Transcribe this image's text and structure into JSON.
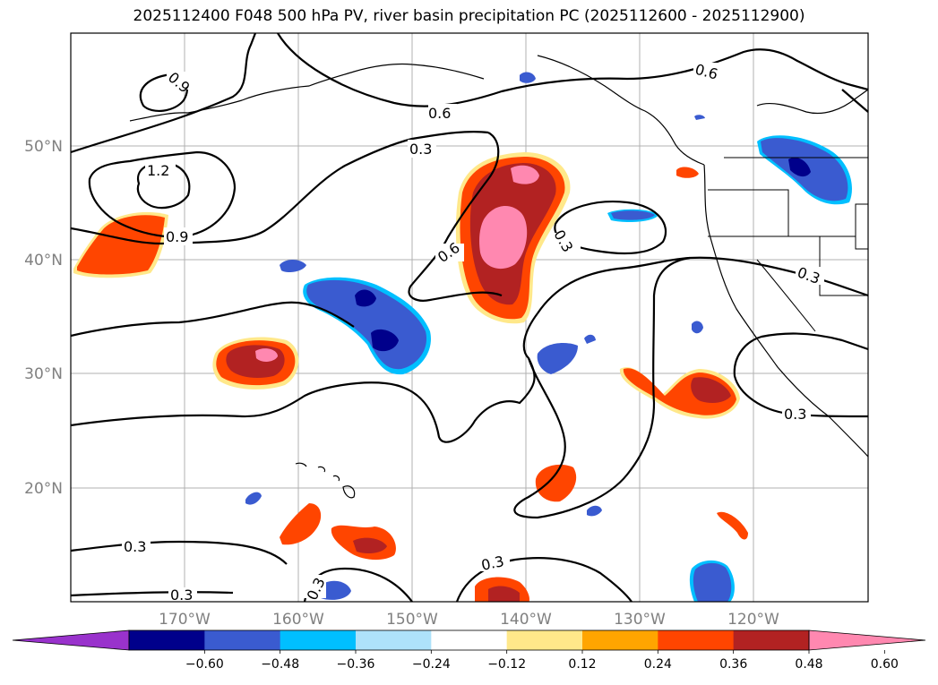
{
  "title": "2025112400 F048 500 hPa PV, river basin precipitation PC (2025112600 - 2025112900)",
  "axes": {
    "lon_ticks": [
      "170°W",
      "160°W",
      "150°W",
      "140°W",
      "130°W",
      "120°W"
    ],
    "lat_ticks": [
      "50°N",
      "40°N",
      "30°N",
      "20°N"
    ]
  },
  "contour_labels": [
    "0.9",
    "1.2",
    "0.9",
    "0.6",
    "0.3",
    "0.6",
    "0.6",
    "0.3",
    "0.3",
    "0.3",
    "0.3",
    "0.3",
    "0.3",
    "0.3"
  ],
  "colorbar": {
    "colors": [
      "#9932cc",
      "#00008b",
      "#3a5bd0",
      "#00bfff",
      "#aee2fa",
      "#ffffff",
      "#ffe88a",
      "#ffa500",
      "#ff4500",
      "#b22222",
      "#ff88b0"
    ],
    "labels": [
      "−0.60",
      "−0.48",
      "−0.36",
      "−0.24",
      "−0.12",
      "0.12",
      "0.24",
      "0.36",
      "0.48",
      "0.60"
    ]
  }
}
